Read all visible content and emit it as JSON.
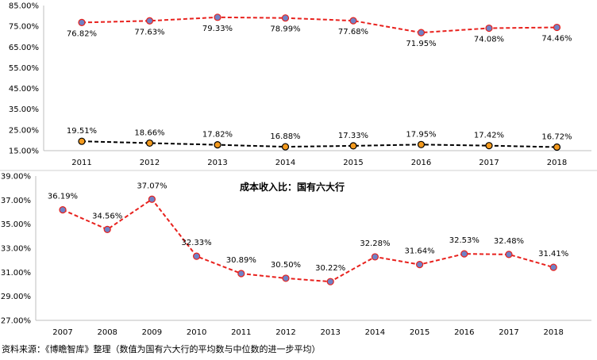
{
  "chart_data": [
    {
      "type": "line",
      "title": "",
      "xlabel": "",
      "ylabel": "",
      "categories": [
        "2011",
        "2012",
        "2013",
        "2014",
        "2015",
        "2016",
        "2017",
        "2018"
      ],
      "y_ticks": [
        "85.00%",
        "75.00%",
        "65.00%",
        "55.00%",
        "45.00%",
        "35.00%",
        "25.00%",
        "15.00%"
      ],
      "ylim": [
        15,
        85
      ],
      "grid": false,
      "legend": "none",
      "series": [
        {
          "values": [
            76.82,
            77.63,
            79.33,
            78.99,
            77.68,
            71.95,
            74.08,
            74.46
          ],
          "labels": [
            "76.82%",
            "77.63%",
            "79.33%",
            "78.99%",
            "77.68%",
            "71.95%",
            "74.08%",
            "74.46%"
          ],
          "line_color": "#e8211d",
          "marker_color": "#6f82c6"
        },
        {
          "values": [
            19.51,
            18.66,
            17.82,
            16.88,
            17.33,
            17.95,
            17.42,
            16.72
          ],
          "labels": [
            "19.51%",
            "18.66%",
            "17.82%",
            "16.88%",
            "17.33%",
            "17.95%",
            "17.42%",
            "16.72%"
          ],
          "line_color": "#000000",
          "marker_color": "#f39a1e"
        }
      ]
    },
    {
      "type": "line",
      "title": "成本收入比：国有六大行",
      "xlabel": "",
      "ylabel": "",
      "categories": [
        "2007",
        "2008",
        "2009",
        "2010",
        "2011",
        "2012",
        "2013",
        "2014",
        "2015",
        "2016",
        "2017",
        "2018"
      ],
      "y_ticks": [
        "39.00%",
        "37.00%",
        "35.00%",
        "33.00%",
        "31.00%",
        "29.00%",
        "27.00%"
      ],
      "ylim": [
        27,
        39
      ],
      "grid": false,
      "legend": "none",
      "series": [
        {
          "values": [
            36.19,
            34.56,
            37.07,
            32.33,
            30.89,
            30.5,
            30.22,
            32.28,
            31.64,
            32.53,
            32.48,
            31.41
          ],
          "labels": [
            "36.19%",
            "34.56%",
            "37.07%",
            "32.33%",
            "30.89%",
            "30.50%",
            "30.22%",
            "32.28%",
            "31.64%",
            "32.53%",
            "32.48%",
            "31.41%"
          ],
          "line_color": "#e8211d",
          "marker_color": "#6f82c6"
        }
      ]
    }
  ],
  "footer": {
    "source": "资料来源：《博瞻智库》整理（数值为国有六大行的平均数与中位数的进一步平均）"
  }
}
